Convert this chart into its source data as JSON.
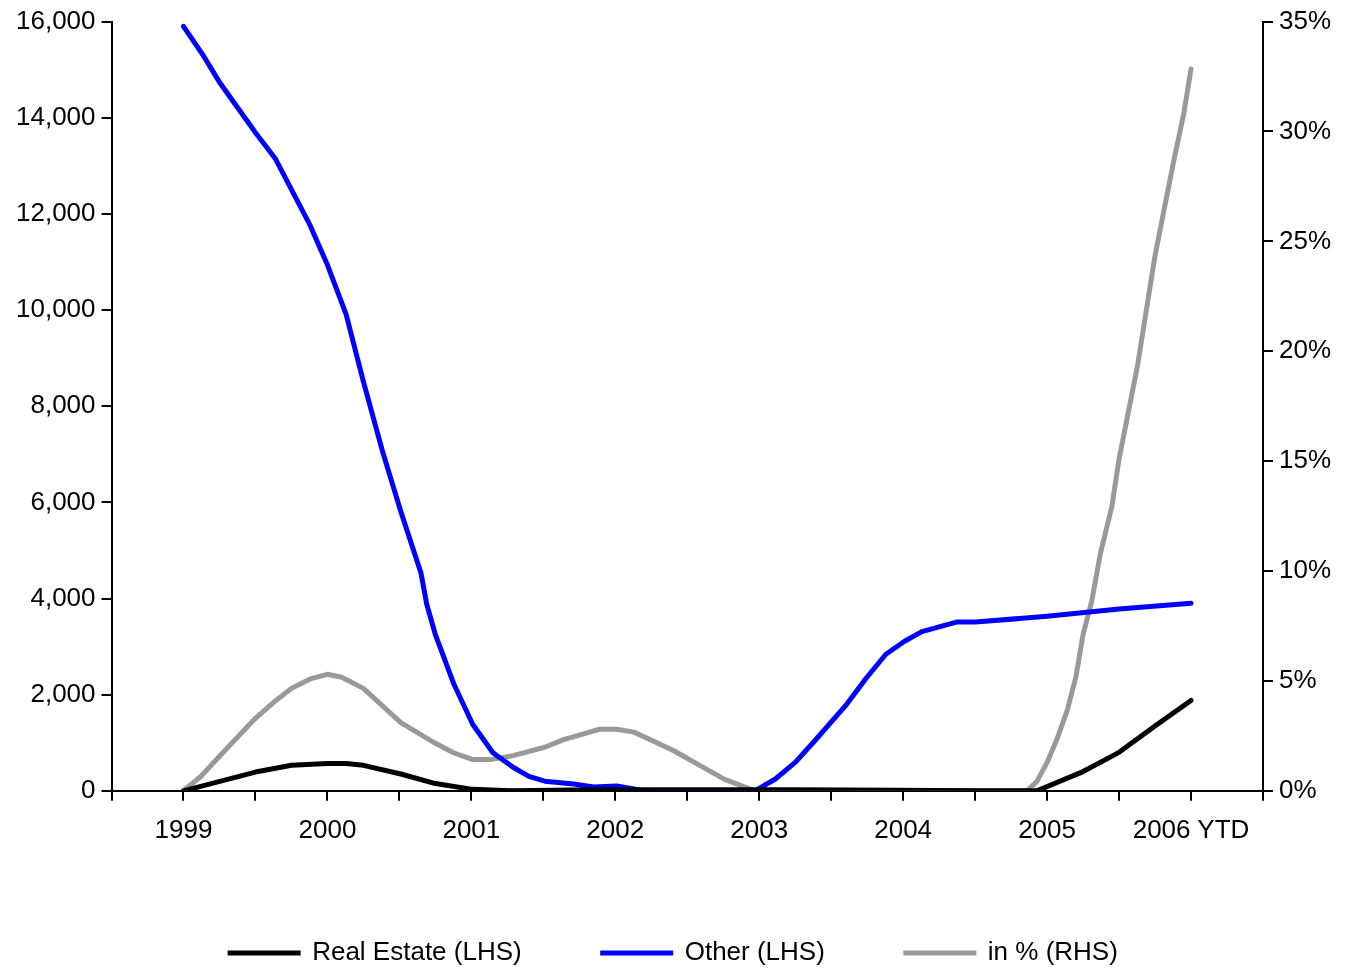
{
  "chart_data": {
    "type": "line",
    "xlim": [
      1998.5,
      2006.5
    ],
    "xticks": [
      {
        "value": 1998.5,
        "label": null
      },
      1999,
      {
        "value": 1999.5,
        "label": null
      },
      2000,
      {
        "value": 2000.5,
        "label": null
      },
      2001,
      {
        "value": 2001.5,
        "label": null
      },
      2002,
      {
        "value": 2002.5,
        "label": null
      },
      2003,
      {
        "value": 2003.5,
        "label": null
      },
      2004,
      {
        "value": 2004.5,
        "label": null
      },
      2005,
      {
        "value": 2005.5,
        "label": null
      },
      {
        "value": 2006,
        "label": "2006 YTD"
      },
      {
        "value": 2006.5,
        "label": null
      }
    ],
    "ylim": [
      0,
      16000
    ],
    "yticks": [
      0,
      {
        "value": 2000,
        "label": "2,000"
      },
      {
        "value": 4000,
        "label": "4,000"
      },
      {
        "value": 6000,
        "label": "6,000"
      },
      {
        "value": 8000,
        "label": "8,000"
      },
      {
        "value": 10000,
        "label": "10,000"
      },
      {
        "value": 12000,
        "label": "12,000"
      },
      {
        "value": 14000,
        "label": "14,000"
      },
      {
        "value": 16000,
        "label": "16,000"
      }
    ],
    "y2lim": [
      0,
      35
    ],
    "y2ticks": [
      {
        "value": 0,
        "label": "0%"
      },
      {
        "value": 5,
        "label": "5%"
      },
      {
        "value": 10,
        "label": "10%"
      },
      {
        "value": 15,
        "label": "15%"
      },
      {
        "value": 20,
        "label": "20%"
      },
      {
        "value": 25,
        "label": "25%"
      },
      {
        "value": 30,
        "label": "30%"
      },
      {
        "value": 35,
        "label": "35%"
      }
    ],
    "grid": false,
    "legend": "bottom",
    "marker": "none",
    "line_style": "solid",
    "series": [
      {
        "name": "Real Estate (LHS)",
        "color": "#000000",
        "x": [
          1999,
          1999.5,
          1999.75,
          2000,
          2000.13,
          2000.25,
          2000.51,
          2000.75,
          2001.01,
          2001.29,
          2001.85,
          2002.55,
          2003.25,
          2003.95,
          2004.5,
          2004.93,
          2005.25,
          2005.5,
          2005.75,
          2006
        ],
        "values": [
          0,
          390,
          530,
          570,
          570,
          530,
          350,
          150,
          30,
          0,
          20,
          20,
          20,
          10,
          0,
          0,
          400,
          800,
          1350,
          1880
        ]
      },
      {
        "name": "Other (LHS)",
        "color": "#0000ff",
        "x": [
          1999,
          1999.13,
          1999.25,
          1999.5,
          1999.64,
          1999.88,
          2000,
          2000.13,
          2000.25,
          2000.38,
          2000.51,
          2000.65,
          2000.69,
          2000.75,
          2000.88,
          2001.01,
          2001.15,
          2001.29,
          2001.4,
          2001.51,
          2001.71,
          2001.85,
          2002.01,
          2002.2,
          2002.51,
          2002.97,
          2003.11,
          2003.25,
          2003.38,
          2003.6,
          2003.74,
          2003.88,
          2004.01,
          2004.13,
          2004.37,
          2004.5,
          2005,
          2005.5,
          2006
        ],
        "values": [
          15900,
          15330,
          14740,
          13690,
          13140,
          11760,
          10940,
          9910,
          8510,
          7090,
          5810,
          4530,
          3880,
          3250,
          2210,
          1380,
          790,
          490,
          300,
          200,
          140,
          80,
          100,
          0,
          0,
          0,
          240,
          590,
          1020,
          1770,
          2330,
          2840,
          3110,
          3310,
          3510,
          3510,
          3630,
          3780,
          3900
        ]
      },
      {
        "name": "in % (RHS)",
        "color": "#999999",
        "axis": "y2",
        "x": [
          1999,
          1999.12,
          1999.26,
          1999.5,
          1999.64,
          1999.75,
          1999.88,
          2000,
          2000.1,
          2000.25,
          2000.51,
          2000.75,
          2000.88,
          2001.01,
          2001.13,
          2001.29,
          2001.51,
          2001.64,
          2001.78,
          2001.89,
          2002.01,
          2002.13,
          2002.27,
          2002.41,
          2002.55,
          2002.76,
          2002.97,
          2003.25,
          2004.09,
          2004.86,
          2004.93,
          2005,
          2005.07,
          2005.14,
          2005.2,
          2005.25,
          2005.31,
          2005.37,
          2005.45,
          2005.5,
          2005.63,
          2005.75,
          2005.88,
          2005.95,
          2006
        ],
        "values": [
          0,
          0.65,
          1.64,
          3.3,
          4.1,
          4.66,
          5.09,
          5.3,
          5.17,
          4.66,
          3.1,
          2.16,
          1.72,
          1.42,
          1.42,
          1.6,
          1.98,
          2.33,
          2.59,
          2.8,
          2.8,
          2.67,
          2.24,
          1.81,
          1.29,
          0.52,
          0,
          0,
          0,
          0,
          0.43,
          1.29,
          2.37,
          3.66,
          5.17,
          7.11,
          8.62,
          10.78,
          12.93,
          15.09,
          19.4,
          24.35,
          28.66,
          30.82,
          32.84
        ]
      }
    ]
  }
}
